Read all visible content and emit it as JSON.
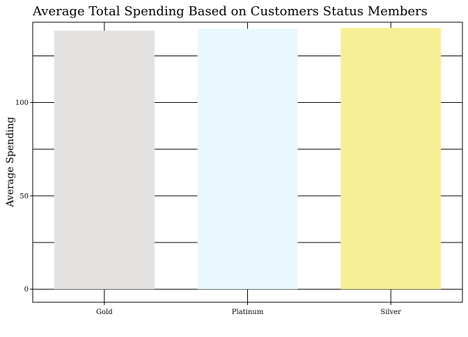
{
  "chart_data": {
    "type": "bar",
    "title": "Average Total Spending Based on Customers Status Members",
    "xlabel": "",
    "ylabel": "Average Spending",
    "categories": [
      "Gold",
      "Platinum",
      "Silver"
    ],
    "values": [
      138.5,
      139.5,
      140.0
    ],
    "colors": [
      "#e3e2e1",
      "#e9f8fc",
      "#f7ef97"
    ],
    "ylim": [
      -7,
      143
    ],
    "yticks": [
      0,
      50,
      100
    ],
    "grid": true
  }
}
